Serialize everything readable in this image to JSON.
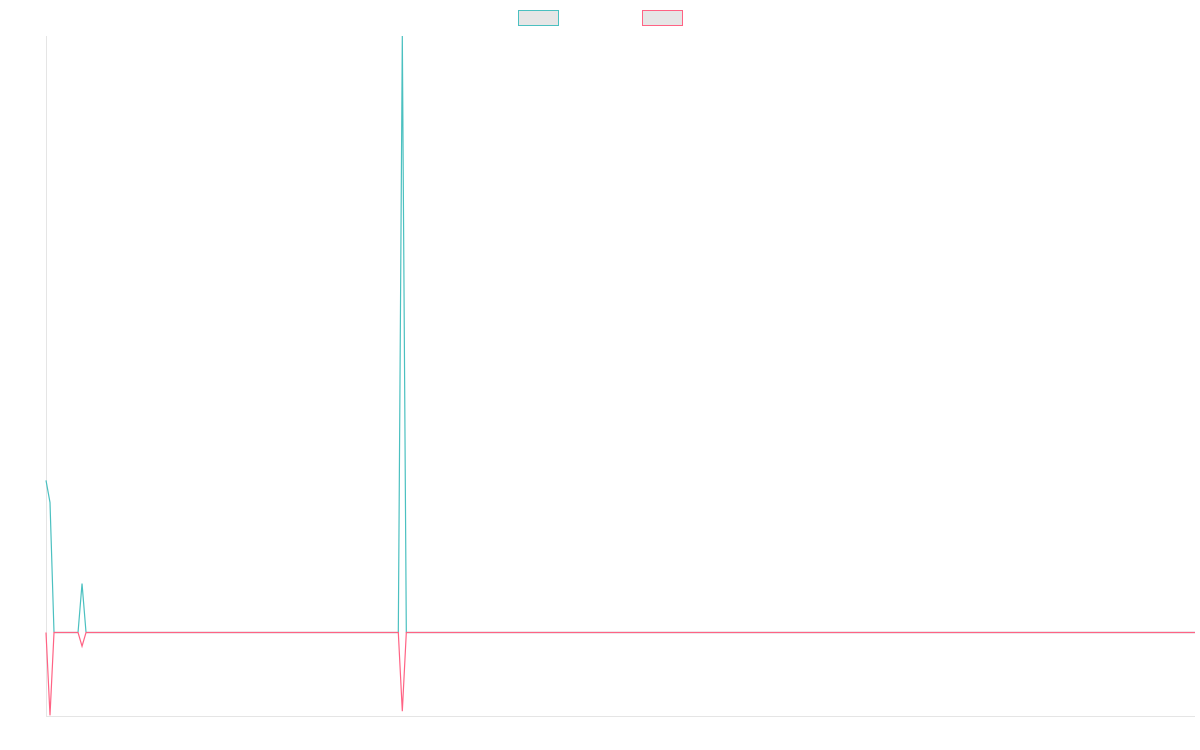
{
  "chart_data": {
    "type": "line",
    "x": [
      0,
      1,
      2,
      8,
      9,
      10,
      88,
      89,
      90,
      287
    ],
    "xlim": [
      0,
      287
    ],
    "ylim": [
      -14,
      100
    ],
    "series": [
      {
        "color": "#4bc0c0",
        "values": [
          25.5,
          21.8,
          0,
          0,
          8.2,
          0,
          0,
          100,
          0,
          0
        ]
      },
      {
        "color": "#ff6384",
        "values": [
          0,
          -13.9,
          0,
          0,
          -2.3,
          0,
          0,
          -13.2,
          0,
          0
        ]
      }
    ],
    "legend": "top"
  }
}
